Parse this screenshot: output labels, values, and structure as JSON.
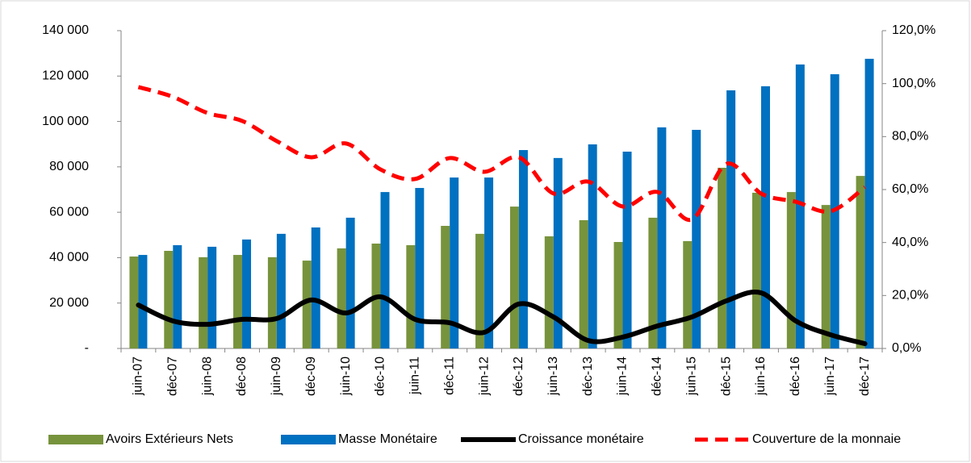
{
  "chart_data": {
    "type": "combo",
    "categories": [
      "juin-07",
      "déc-07",
      "juin-08",
      "déc-08",
      "juin-09",
      "déc-09",
      "juin-10",
      "déc-10",
      "juin-11",
      "déc-11",
      "juin-12",
      "déc-12",
      "juin-13",
      "déc-13",
      "juin-14",
      "déc-14",
      "juin-15",
      "déc-15",
      "juin-16",
      "déc-16",
      "juin-17",
      "déc-17"
    ],
    "series": [
      {
        "name": "Avoirs Extérieurs Nets",
        "type": "bar",
        "color": "#77933c",
        "values": [
          40500,
          43000,
          40200,
          41200,
          40200,
          38700,
          44100,
          46200,
          45500,
          54000,
          50500,
          62500,
          49400,
          56500,
          46900,
          57600,
          47300,
          79600,
          68600,
          68900,
          63200,
          76000
        ]
      },
      {
        "name": "Masse Monétaire",
        "type": "bar",
        "color": "#0070c0",
        "values": [
          41200,
          45500,
          44800,
          48000,
          50500,
          53300,
          57600,
          68900,
          70700,
          75300,
          75300,
          87400,
          83900,
          89900,
          86700,
          97400,
          96300,
          113700,
          115500,
          125100,
          120800,
          127600
        ]
      },
      {
        "name": "Croissance monétaire",
        "type": "line",
        "axis": "y2",
        "color": "#000000",
        "line_style": "solid",
        "values": [
          16.4,
          10.4,
          9.1,
          11,
          11.3,
          18.3,
          13.4,
          19.5,
          11,
          9.7,
          6.1,
          16.8,
          11.9,
          3,
          4.3,
          8.5,
          11.9,
          18,
          21,
          10.4,
          5.2,
          1.8
        ]
      },
      {
        "name": "Couverture de la monnaie",
        "type": "line",
        "axis": "y2",
        "color": "#ff0000",
        "line_style": "dashed",
        "values": [
          98.7,
          95,
          88.9,
          85.9,
          78.3,
          72.2,
          77.4,
          67.6,
          64,
          71.9,
          66.7,
          72.2,
          58.5,
          63,
          53.6,
          59.1,
          48.7,
          69.7,
          58.5,
          55.4,
          51.8,
          60.9
        ]
      }
    ],
    "ylim": [
      0,
      140000
    ],
    "yticks": [
      {
        "value": 0,
        "label": "-"
      },
      {
        "value": 20000,
        "label": "20 000"
      },
      {
        "value": 40000,
        "label": "40 000"
      },
      {
        "value": 60000,
        "label": "60 000"
      },
      {
        "value": 80000,
        "label": "80 000"
      },
      {
        "value": 100000,
        "label": "100 000"
      },
      {
        "value": 120000,
        "label": "120 000"
      },
      {
        "value": 140000,
        "label": "140 000"
      }
    ],
    "y2lim": [
      0,
      120
    ],
    "y2ticks": [
      {
        "value": 0,
        "label": "0,0%"
      },
      {
        "value": 20,
        "label": "20,0%"
      },
      {
        "value": 40,
        "label": "40,0%"
      },
      {
        "value": 60,
        "label": "60,0%"
      },
      {
        "value": 80,
        "label": "80,0%"
      },
      {
        "value": 100,
        "label": "100,0%"
      },
      {
        "value": 120,
        "label": "120,0%"
      }
    ],
    "legend": "bottom"
  }
}
